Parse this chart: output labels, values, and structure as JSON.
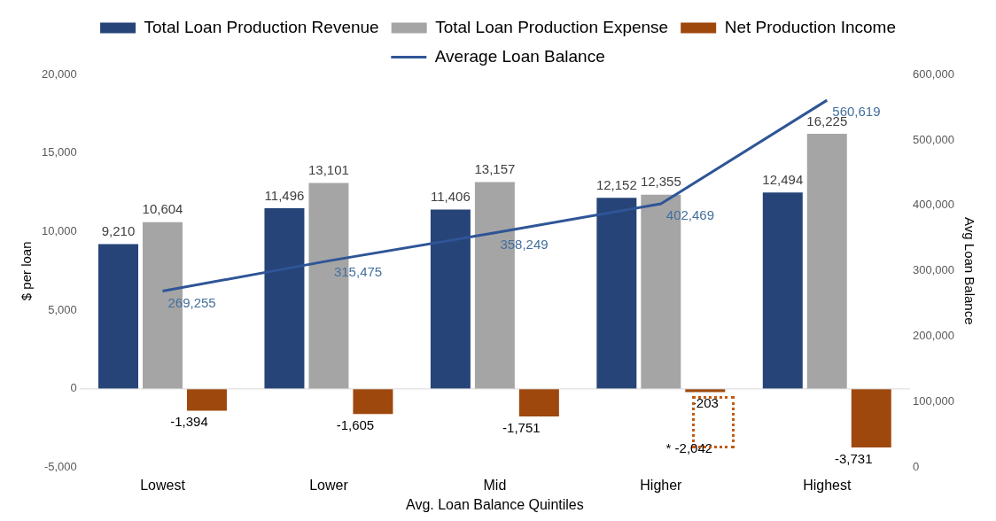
{
  "chart_data": {
    "type": "bar",
    "categories": [
      "Lowest",
      "Lower",
      "Mid",
      "Higher",
      "Highest"
    ],
    "series": [
      {
        "name": "Total Loan Production Revenue",
        "color": "#264478",
        "values": [
          9210,
          11496,
          11406,
          12152,
          12494
        ],
        "value_labels": [
          "9,210",
          "11,496",
          "11,406",
          "12,152",
          "12,494"
        ]
      },
      {
        "name": "Total Loan Production Expense",
        "color": "#a5a5a5",
        "values": [
          10604,
          13101,
          13157,
          12355,
          16225
        ],
        "value_labels": [
          "10,604",
          "13,101",
          "13,157",
          "12,355",
          "16,225"
        ]
      },
      {
        "name": "Net Production Income",
        "color": "#9e480e",
        "values": [
          -1394,
          -1605,
          -1751,
          -203,
          -3731
        ],
        "value_labels": [
          "-1,394",
          "-1,605",
          "-1,751",
          "-203",
          "-3,731"
        ]
      },
      {
        "name": "Average Loan Balance",
        "type": "line",
        "axis": "y2",
        "color": "#2f5597",
        "values": [
          269255,
          315475,
          358249,
          402469,
          560619
        ],
        "value_labels": [
          "269,255",
          "315,475",
          "358,249",
          "402,469",
          "560,619"
        ]
      }
    ],
    "xlabel": "Avg. Loan Balance Quintiles",
    "ylabel": "$ per loan",
    "y2label": "Avg Loan Balance",
    "ylim": [
      -5000,
      20000
    ],
    "yticks": [
      {
        "value": -5000,
        "label": "-5,000"
      },
      0,
      {
        "value": 5000,
        "label": "5,000"
      },
      {
        "value": 10000,
        "label": "10,000"
      },
      {
        "value": 15000,
        "label": "15,000"
      },
      {
        "value": 20000,
        "label": "20,000"
      }
    ],
    "y2lim": [
      0,
      600000
    ],
    "y2ticks": [
      0,
      {
        "value": 100000,
        "label": "100,000"
      },
      {
        "value": 200000,
        "label": "200,000"
      },
      {
        "value": 300000,
        "label": "300,000"
      },
      {
        "value": 400000,
        "label": "400,000"
      },
      {
        "value": 500000,
        "label": "500,000"
      },
      {
        "value": 600000,
        "label": "600,000"
      }
    ],
    "ref_lines": [
      {
        "axis": "y",
        "value": 0,
        "color": "#d9d9d9"
      }
    ],
    "annotations": [
      "* -2,042"
    ],
    "legend": "top",
    "marker": "none",
    "line_style": "solid"
  }
}
